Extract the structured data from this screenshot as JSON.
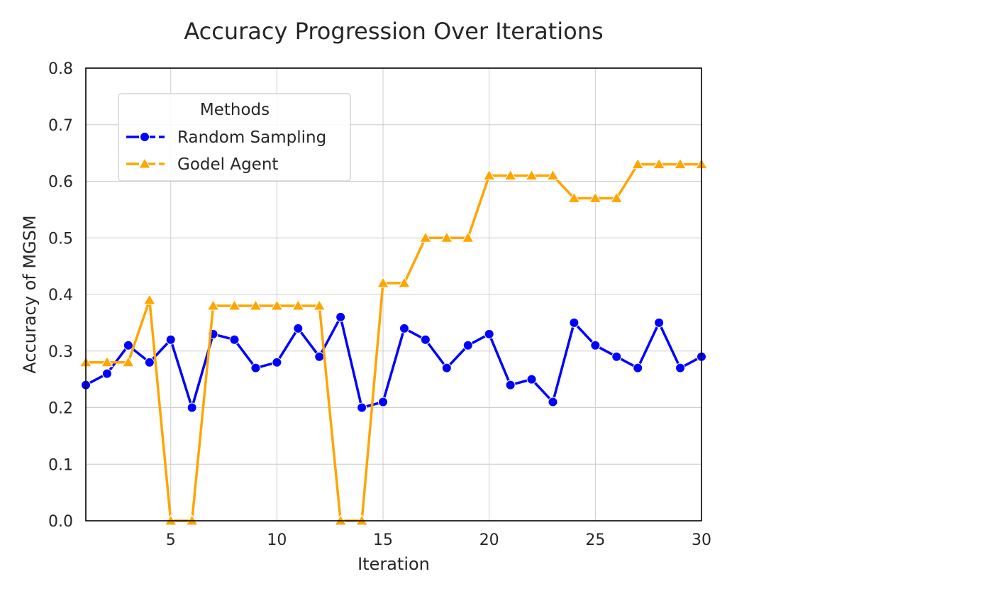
{
  "chart_data": {
    "type": "line",
    "title": "Accuracy Progression Over Iterations",
    "xlabel": "Iteration",
    "ylabel": "Accuracy of MGSM",
    "xlim": [
      1,
      30
    ],
    "ylim": [
      0.0,
      0.8
    ],
    "xticks": [
      5,
      10,
      15,
      20,
      25,
      30
    ],
    "yticks": [
      "0.0",
      "0.1",
      "0.2",
      "0.3",
      "0.4",
      "0.5",
      "0.6",
      "0.7",
      "0.8"
    ],
    "grid": true,
    "legend": {
      "title": "Methods",
      "placement": "top-left"
    },
    "x": [
      1,
      2,
      3,
      4,
      5,
      6,
      7,
      8,
      9,
      10,
      11,
      12,
      13,
      14,
      15,
      16,
      17,
      18,
      19,
      20,
      21,
      22,
      23,
      24,
      25,
      26,
      27,
      28,
      29,
      30
    ],
    "series": [
      {
        "name": "Random Sampling",
        "color": "#0000ff",
        "marker": "circle",
        "values": [
          0.24,
          0.26,
          0.31,
          0.28,
          0.32,
          0.2,
          0.33,
          0.32,
          0.27,
          0.28,
          0.34,
          0.29,
          0.36,
          0.2,
          0.21,
          0.34,
          0.32,
          0.27,
          0.31,
          0.33,
          0.24,
          0.25,
          0.21,
          0.35,
          0.31,
          0.29,
          0.27,
          0.35,
          0.27,
          0.29
        ]
      },
      {
        "name": "Godel Agent",
        "color": "#ffa500",
        "marker": "triangle",
        "values": [
          0.28,
          0.28,
          0.28,
          0.39,
          0.0,
          0.0,
          0.38,
          0.38,
          0.38,
          0.38,
          0.38,
          0.38,
          0.0,
          0.0,
          0.42,
          0.42,
          0.5,
          0.5,
          0.5,
          0.61,
          0.61,
          0.61,
          0.61,
          0.57,
          0.57,
          0.57,
          0.63,
          0.63,
          0.63,
          0.63
        ]
      }
    ]
  }
}
